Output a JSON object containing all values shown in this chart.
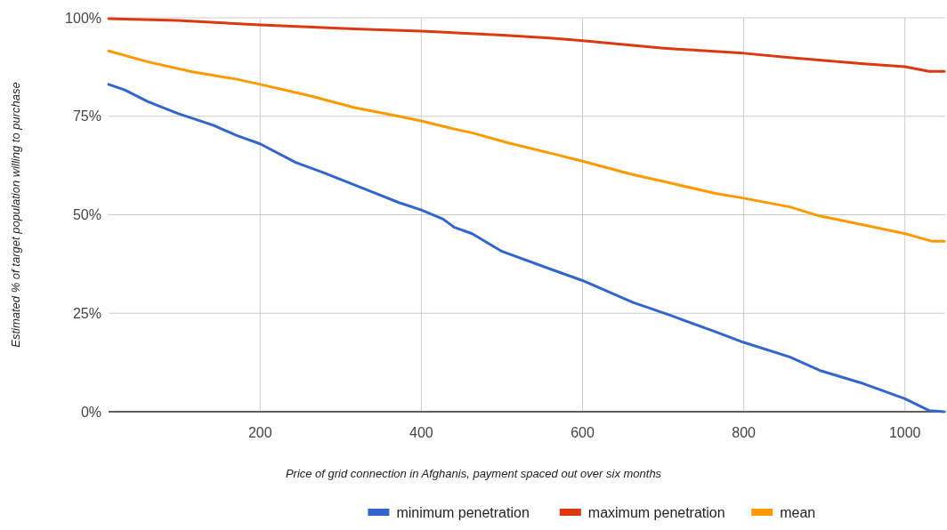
{
  "chart_data": {
    "type": "line",
    "xlabel": "Price of grid connection in Afghanis, payment spaced out over six months",
    "ylabel": "Estimated % of target population willing to purchase",
    "xlim": [
      12,
      1050
    ],
    "xticks": [
      200,
      400,
      600,
      800,
      1000
    ],
    "ylim": [
      0,
      100
    ],
    "yticks": [
      {
        "value": 0,
        "label": "0%"
      },
      {
        "value": 25,
        "label": "25%"
      },
      {
        "value": 50,
        "label": "50%"
      },
      {
        "value": 75,
        "label": "75%"
      },
      {
        "value": 100,
        "label": "100%"
      }
    ],
    "grid": true,
    "legend": "bottom",
    "marker": "none",
    "line_style": "solid",
    "series": [
      {
        "name": "minimum penetration",
        "color": "#3366cc",
        "x": [
          12,
          32,
          61,
          98,
          142,
          171,
          200,
          244,
          280,
          335,
          372,
          400,
          427,
          441,
          463,
          500,
          563,
          600,
          662,
          710,
          765,
          800,
          857,
          894,
          949,
          1000,
          1030,
          1049
        ],
        "values": [
          83.1,
          81.7,
          78.7,
          75.7,
          72.7,
          70.1,
          68.0,
          63.3,
          60.6,
          56.1,
          53.1,
          51.2,
          48.9,
          46.8,
          45.2,
          40.7,
          36.0,
          33.3,
          27.8,
          24.4,
          20.3,
          17.6,
          13.9,
          10.5,
          7.1,
          3.3,
          0.3,
          0
        ]
      },
      {
        "name": "maximum penetration",
        "color": "#dc3912",
        "x": [
          12,
          98,
          200,
          317,
          400,
          500,
          563,
          600,
          698,
          800,
          857,
          949,
          1000,
          1030,
          1049
        ],
        "values": [
          99.8,
          99.3,
          98.2,
          97.2,
          96.6,
          95.6,
          94.8,
          94.2,
          92.3,
          91.0,
          89.9,
          88.3,
          87.6,
          86.4,
          86.4
        ]
      },
      {
        "name": "mean",
        "color": "#ff9900",
        "x": [
          12,
          61,
          116,
          171,
          200,
          262,
          317,
          372,
          400,
          438,
          463,
          507,
          563,
          600,
          662,
          710,
          765,
          800,
          857,
          894,
          949,
          1000,
          1033,
          1049
        ],
        "values": [
          91.6,
          88.8,
          86.3,
          84.4,
          83.1,
          80.2,
          77.2,
          75.0,
          73.8,
          71.9,
          70.8,
          68.3,
          65.5,
          63.6,
          60.2,
          58.0,
          55.4,
          54.2,
          52.0,
          49.7,
          47.4,
          45.2,
          43.3,
          43.3
        ]
      }
    ]
  }
}
